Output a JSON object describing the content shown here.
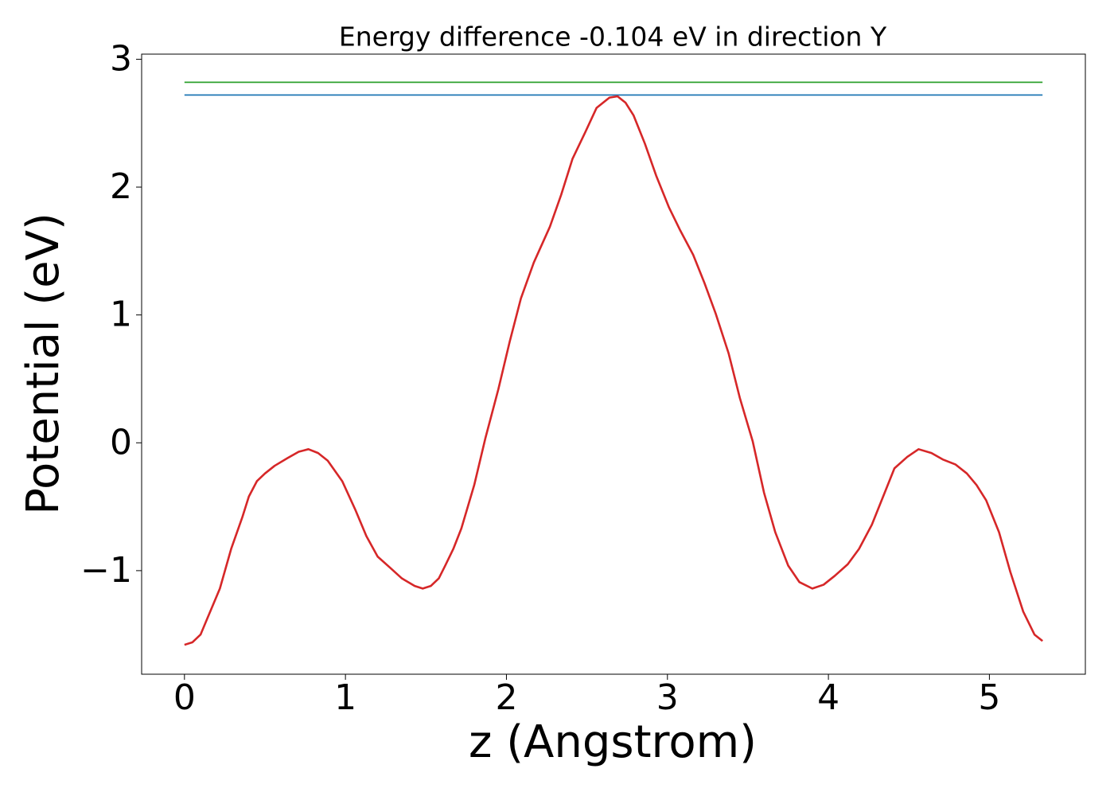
{
  "chart_data": {
    "type": "line",
    "title": "Energy difference -0.104 eV in direction Y",
    "x_label": "z (Angstrom)",
    "y_label": "Potential (eV)",
    "xlim": [
      -0.266,
      5.596
    ],
    "ylim": [
      -1.81,
      3.04
    ],
    "xticks": [
      0,
      1,
      2,
      3,
      4,
      5
    ],
    "yticks": [
      {
        "value": -1,
        "label": "−1"
      },
      0,
      1,
      2,
      3
    ],
    "grid": false,
    "series": [
      {
        "color": "#d62728",
        "x": [
          0,
          0.05,
          0.1,
          0.14,
          0.22,
          0.29,
          0.36,
          0.4,
          0.45,
          0.5,
          0.56,
          0.64,
          0.71,
          0.77,
          0.83,
          0.89,
          0.98,
          1.06,
          1.13,
          1.2,
          1.28,
          1.35,
          1.43,
          1.48,
          1.53,
          1.58,
          1.62,
          1.67,
          1.72,
          1.8,
          1.87,
          1.95,
          2.02,
          2.09,
          2.17,
          2.27,
          2.34,
          2.41,
          2.49,
          2.56,
          2.64,
          2.69,
          2.74,
          2.79,
          2.86,
          2.93,
          3.01,
          3.08,
          3.16,
          3.23,
          3.3,
          3.38,
          3.45,
          3.53,
          3.6,
          3.67,
          3.75,
          3.82,
          3.9,
          3.97,
          4.04,
          4.12,
          4.19,
          4.27,
          4.34,
          4.41,
          4.49,
          4.56,
          4.64,
          4.71,
          4.79,
          4.86,
          4.92,
          4.98,
          5.06,
          5.13,
          5.21,
          5.28,
          5.33
        ],
        "values": [
          -1.58,
          -1.56,
          -1.5,
          -1.38,
          -1.14,
          -0.83,
          -0.58,
          -0.42,
          -0.3,
          -0.24,
          -0.18,
          -0.12,
          -0.07,
          -0.05,
          -0.08,
          -0.14,
          -0.3,
          -0.52,
          -0.73,
          -0.89,
          -0.98,
          -1.06,
          -1.12,
          -1.14,
          -1.12,
          -1.06,
          -0.96,
          -0.83,
          -0.67,
          -0.33,
          0.04,
          0.42,
          0.79,
          1.13,
          1.41,
          1.69,
          1.94,
          2.22,
          2.43,
          2.62,
          2.7,
          2.71,
          2.66,
          2.56,
          2.34,
          2.09,
          1.84,
          1.66,
          1.47,
          1.25,
          1.01,
          0.7,
          0.35,
          0.01,
          -0.39,
          -0.7,
          -0.96,
          -1.09,
          -1.14,
          -1.11,
          -1.04,
          -0.95,
          -0.83,
          -0.64,
          -0.42,
          -0.2,
          -0.11,
          -0.05,
          -0.08,
          -0.13,
          -0.17,
          -0.24,
          -0.33,
          -0.45,
          -0.7,
          -1.01,
          -1.32,
          -1.5,
          -1.55
        ]
      },
      {
        "color": "#2ca02c",
        "x": [
          0,
          5.33
        ],
        "values": [
          2.82,
          2.82
        ]
      },
      {
        "color": "#1f77b4",
        "x": [
          0,
          5.33
        ],
        "values": [
          2.72,
          2.72
        ]
      }
    ]
  }
}
